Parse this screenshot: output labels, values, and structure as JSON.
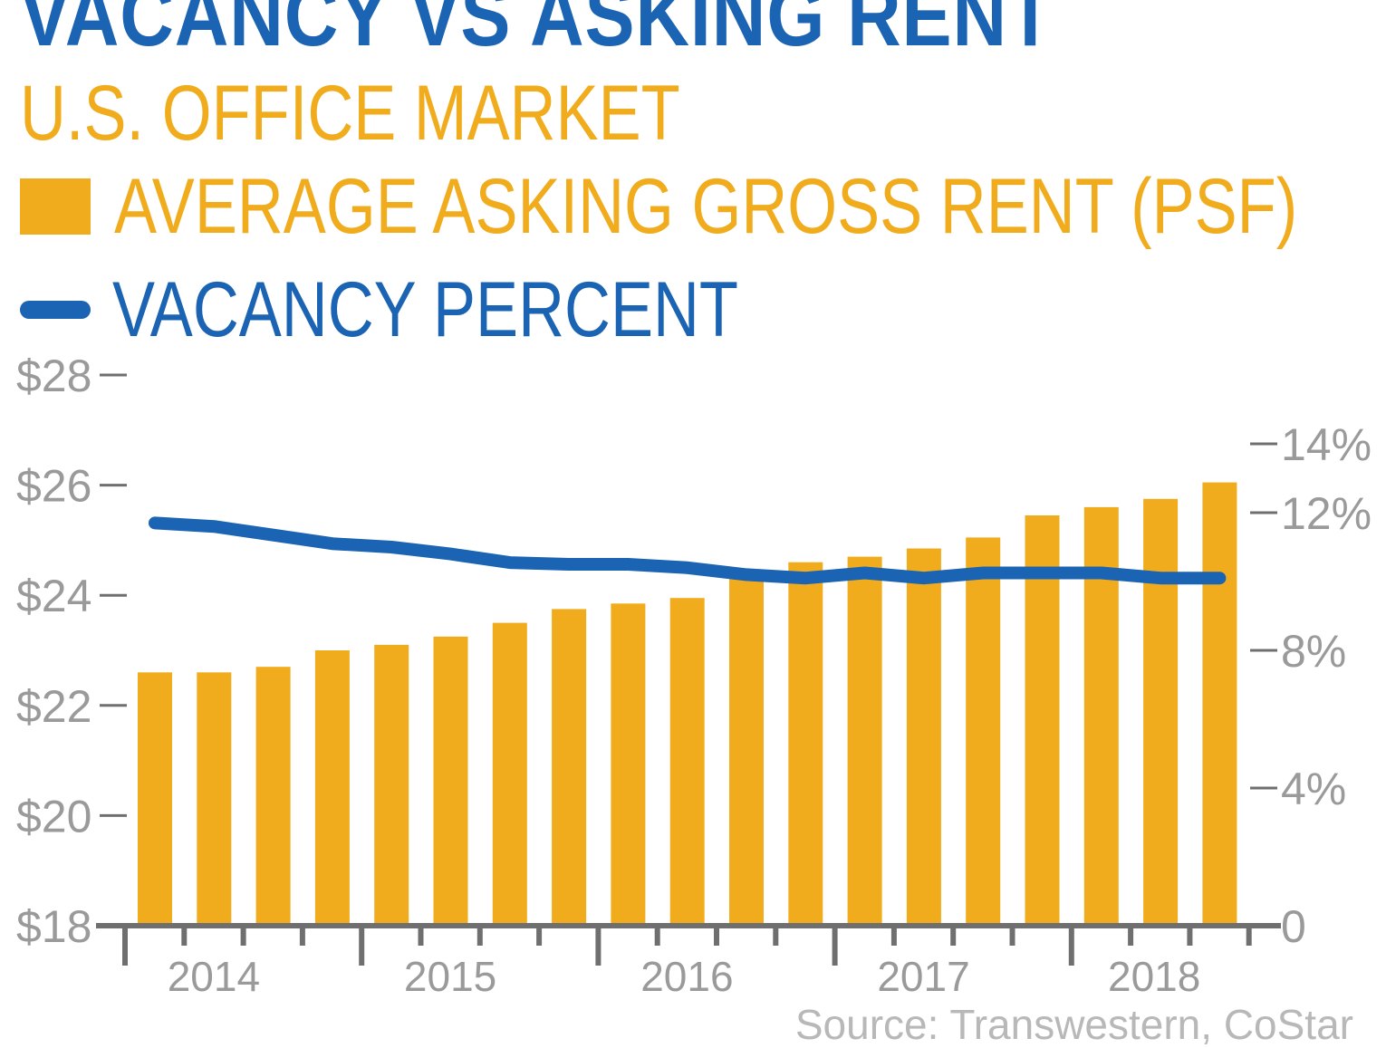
{
  "colors": {
    "title": "#1b63b3",
    "rent_bar": "#f0ac1d",
    "vacancy_line": "#1b63b3",
    "axis": "#6f6f6f",
    "tick_label": "#9a9a9a",
    "source": "#b8b8b8"
  },
  "chart_data": {
    "type": "bar",
    "title": "VACANCY VS ASKING RENT",
    "subtitle": "U.S. OFFICE MARKET",
    "legend": {
      "rent": "AVERAGE ASKING GROSS RENT (PSF)",
      "vacancy": "VACANCY PERCENT"
    },
    "source": "Source: Transwestern, CoStar",
    "x_tick_labels": [
      "2014",
      "2015",
      "2016",
      "2017",
      "2018"
    ],
    "y_left": {
      "ticks": [
        18,
        20,
        22,
        24,
        26,
        28
      ],
      "tick_labels": [
        "$18",
        "$20",
        "$22",
        "$24",
        "$26",
        "$28"
      ],
      "ylim": [
        18,
        28
      ]
    },
    "y_right": {
      "ticks": [
        0,
        4,
        8,
        12,
        14
      ],
      "tick_labels": [
        "0",
        "4%",
        "8%",
        "12%",
        "14%"
      ],
      "ylim": [
        0,
        16
      ]
    },
    "series": [
      {
        "name": "AVERAGE ASKING GROSS RENT (PSF)",
        "type": "bar",
        "axis": "left",
        "values": [
          22.6,
          22.6,
          22.7,
          23.0,
          23.1,
          23.25,
          23.5,
          23.75,
          23.85,
          23.95,
          24.4,
          24.6,
          24.7,
          24.85,
          25.05,
          25.45,
          25.6,
          25.75,
          26.05
        ]
      },
      {
        "name": "VACANCY PERCENT",
        "type": "line",
        "axis": "right",
        "values": [
          11.7,
          11.6,
          11.35,
          11.1,
          11.0,
          10.8,
          10.55,
          10.5,
          10.5,
          10.4,
          10.2,
          10.1,
          10.25,
          10.1,
          10.25,
          10.25,
          10.25,
          10.1,
          10.1
        ]
      }
    ]
  }
}
